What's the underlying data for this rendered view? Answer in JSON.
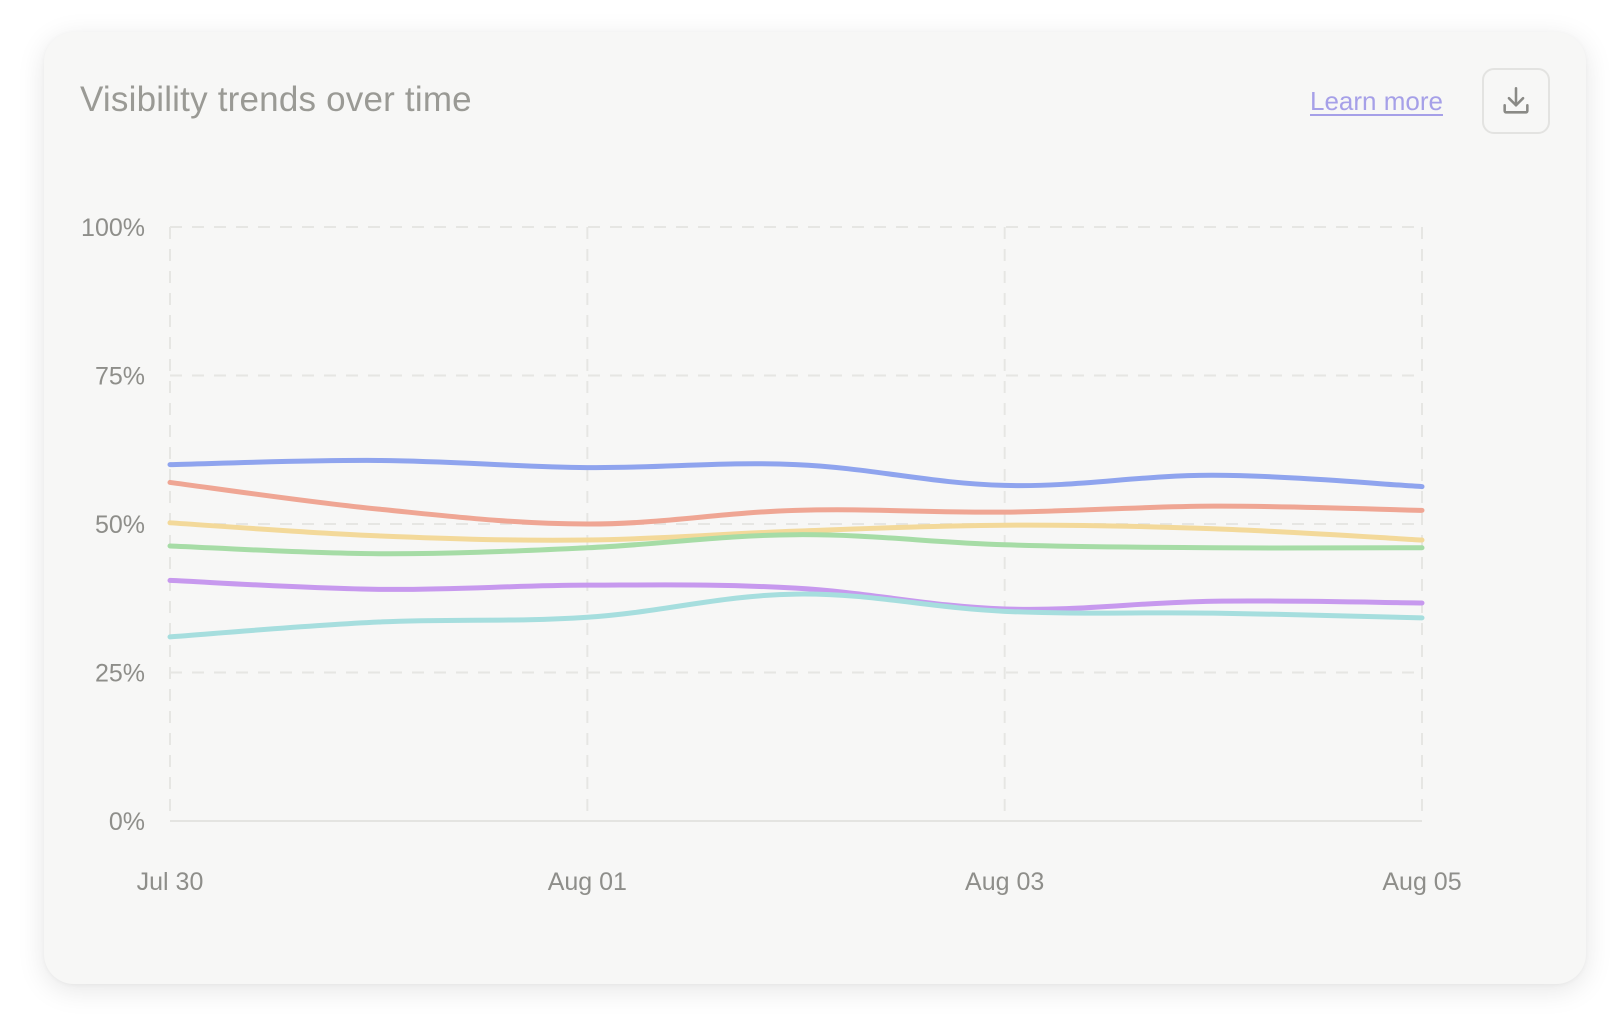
{
  "header": {
    "title": "Visibility trends over time",
    "learn_more_label": "Learn more",
    "download_icon": "download-icon"
  },
  "colors": {
    "card_background": "#f7f7f6",
    "link": "#a6a0e8",
    "grid": "#e6e6e3",
    "axis_text": "#8e8e8a"
  },
  "chart_data": {
    "type": "line",
    "title": "Visibility trends over time",
    "xlabel": "",
    "ylabel": "",
    "x": [
      "Jul 30",
      "Jul 31",
      "Aug 01",
      "Aug 02",
      "Aug 03",
      "Aug 04",
      "Aug 05"
    ],
    "x_ticks": [
      "Jul 30",
      "Aug 01",
      "Aug 03",
      "Aug 05"
    ],
    "y_ticks": [
      "0%",
      "25%",
      "50%",
      "75%",
      "100%"
    ],
    "ylim": [
      0,
      100
    ],
    "grid": true,
    "legend": "none",
    "series": [
      {
        "color": "#8fa4ee",
        "values": [
          60.0,
          60.7,
          59.5,
          60.0,
          56.5,
          58.2,
          56.3
        ]
      },
      {
        "color": "#efa694",
        "values": [
          57.0,
          52.5,
          50.0,
          52.3,
          52.0,
          53.0,
          52.3
        ]
      },
      {
        "color": "#f3d99a",
        "values": [
          50.2,
          48.0,
          47.3,
          48.8,
          49.8,
          49.2,
          47.3
        ]
      },
      {
        "color": "#a6dca6",
        "values": [
          46.3,
          45.0,
          46.0,
          48.2,
          46.5,
          46.0,
          46.0
        ]
      },
      {
        "color": "#c799ee",
        "values": [
          40.5,
          39.0,
          39.7,
          39.2,
          35.7,
          37.0,
          36.7
        ]
      },
      {
        "color": "#a6dede",
        "values": [
          31.0,
          33.5,
          34.3,
          38.2,
          35.3,
          35.0,
          34.2
        ]
      }
    ]
  }
}
